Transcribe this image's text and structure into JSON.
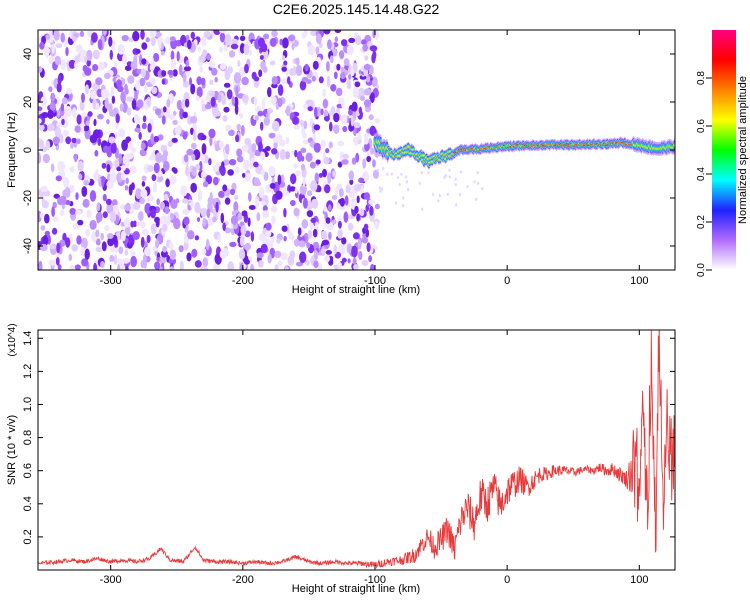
{
  "chart_data": [
    {
      "type": "heatmap",
      "title": "C2E6.2025.145.14.48.G22",
      "xlabel": "Height of straight line (km)",
      "ylabel": "Frequency (Hz)",
      "xlim": [
        -355,
        127
      ],
      "ylim": [
        -50,
        50
      ],
      "xticks": [
        -300,
        -200,
        -100,
        0,
        100
      ],
      "yticks": [
        -40,
        -20,
        0,
        20,
        40
      ],
      "grid": false,
      "noise_region_x": [
        -355,
        -98
      ],
      "signal_track": {
        "x": [
          -100,
          -95,
          -90,
          -85,
          -80,
          -75,
          -70,
          -65,
          -60,
          -55,
          -50,
          -45,
          -40,
          -35,
          -30,
          -20,
          -10,
          0,
          10,
          20,
          30,
          40,
          50,
          60,
          70,
          80,
          85,
          90,
          95,
          100,
          105,
          110,
          115,
          120,
          127
        ],
        "freq": [
          3,
          1,
          -1,
          -2,
          -1,
          0,
          -1,
          -3,
          -5,
          -4,
          -3,
          -2,
          -1,
          0,
          0,
          0.5,
          1,
          1.5,
          1.8,
          2,
          2,
          2.2,
          2.2,
          2.3,
          2.5,
          2.5,
          3,
          3,
          2.5,
          2,
          1.5,
          1,
          0.5,
          1,
          1.5
        ]
      },
      "colorbar": {
        "label": "Normalized spectral amplitude",
        "range": [
          0,
          1
        ],
        "ticks": [
          "0.0",
          "0.2",
          "0.4",
          "0.6",
          "0.8"
        ],
        "colors": [
          "#ffffff",
          "#b06bff",
          "#2020ff",
          "#00ffff",
          "#00ff00",
          "#ffff00",
          "#ff8000",
          "#ff0000",
          "#ff0080"
        ]
      }
    },
    {
      "type": "line",
      "xlabel": "Height of straight line (km)",
      "ylabel": "SNR (10 * v/v)",
      "y_multiplier": "(x10^4)",
      "xlim": [
        -355,
        127
      ],
      "ylim": [
        0,
        1.45
      ],
      "xticks": [
        -300,
        -200,
        -100,
        0,
        100
      ],
      "yticks": [
        0.2,
        0.4,
        0.6,
        0.8,
        1.0,
        1.2,
        1.4
      ],
      "grid": false,
      "color": "#e83a3a",
      "x": [
        -355,
        -340,
        -330,
        -320,
        -310,
        -300,
        -290,
        -280,
        -270,
        -262,
        -255,
        -245,
        -236,
        -230,
        -220,
        -210,
        -200,
        -190,
        -180,
        -170,
        -160,
        -150,
        -140,
        -130,
        -120,
        -110,
        -100,
        -90,
        -80,
        -70,
        -65,
        -60,
        -55,
        -50,
        -45,
        -40,
        -35,
        -30,
        -25,
        -20,
        -15,
        -10,
        -5,
        0,
        5,
        10,
        15,
        20,
        25,
        30,
        35,
        40,
        45,
        50,
        55,
        60,
        65,
        70,
        75,
        80,
        85,
        90,
        95,
        100,
        103,
        106,
        109,
        112,
        115,
        118,
        121,
        124,
        127
      ],
      "y": [
        0.04,
        0.05,
        0.06,
        0.05,
        0.07,
        0.05,
        0.06,
        0.05,
        0.07,
        0.13,
        0.06,
        0.05,
        0.14,
        0.06,
        0.05,
        0.05,
        0.04,
        0.05,
        0.04,
        0.05,
        0.08,
        0.05,
        0.04,
        0.05,
        0.04,
        0.04,
        0.03,
        0.05,
        0.06,
        0.09,
        0.15,
        0.2,
        0.14,
        0.18,
        0.25,
        0.12,
        0.3,
        0.38,
        0.28,
        0.45,
        0.4,
        0.5,
        0.38,
        0.48,
        0.52,
        0.55,
        0.5,
        0.54,
        0.58,
        0.58,
        0.6,
        0.6,
        0.6,
        0.59,
        0.6,
        0.61,
        0.6,
        0.62,
        0.6,
        0.61,
        0.58,
        0.55,
        0.6,
        0.45,
        0.9,
        0.2,
        1.25,
        0.1,
        1.45,
        0.3,
        0.8,
        0.6,
        0.65
      ],
      "jitter": {
        "x": [
          -355,
          -120,
          -80,
          -50,
          -20,
          0,
          30,
          60,
          90,
          100,
          127
        ],
        "amp": [
          0.012,
          0.012,
          0.03,
          0.08,
          0.12,
          0.1,
          0.04,
          0.02,
          0.05,
          0.3,
          0.25
        ]
      }
    }
  ]
}
